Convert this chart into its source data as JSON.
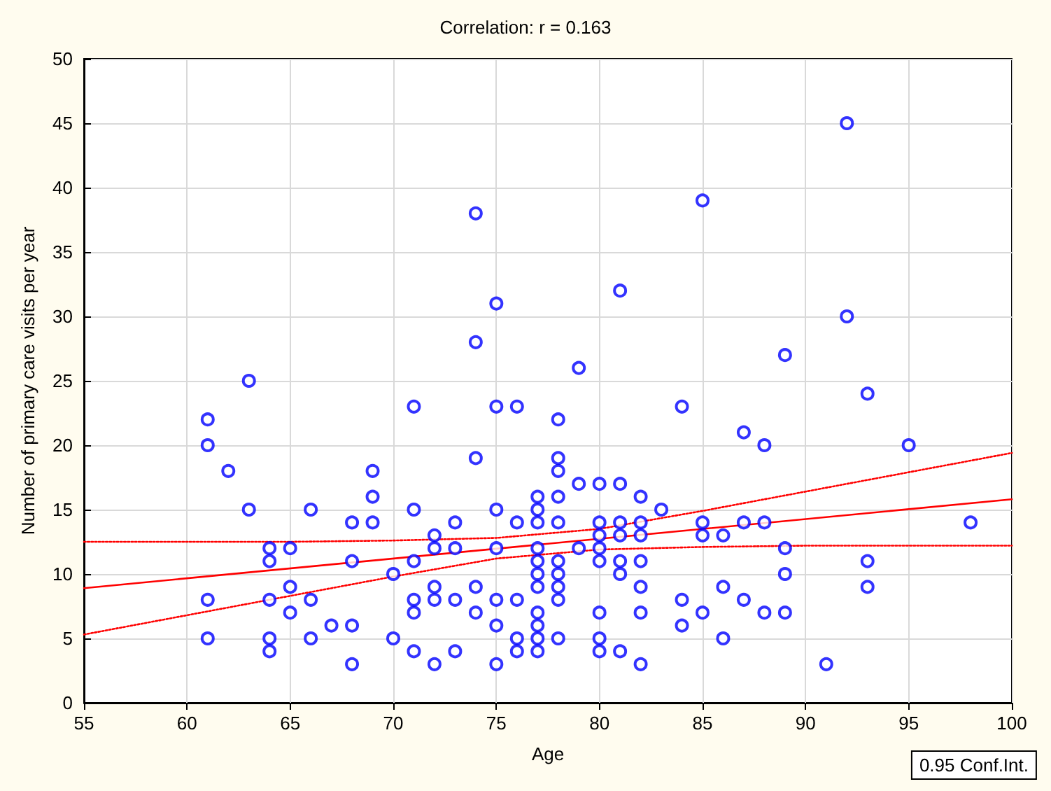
{
  "chart_data": {
    "type": "scatter",
    "title": "Correlation: r = 0.163",
    "xlabel": "Age",
    "ylabel": "Number of primary care visits per year",
    "annotations": [
      "0.95 Conf.Int."
    ],
    "xlim": [
      55,
      100
    ],
    "xticks": [
      55,
      60,
      65,
      70,
      75,
      80,
      85,
      90,
      95,
      100
    ],
    "ylim": [
      0,
      50
    ],
    "yticks": [
      0,
      5,
      10,
      15,
      20,
      25,
      30,
      35,
      40,
      45,
      50
    ],
    "grid": true,
    "series": [
      {
        "marker": "circle",
        "color": "#0000ff",
        "x": [
          61,
          61,
          61,
          61,
          62,
          63,
          63,
          64,
          64,
          64,
          64,
          64,
          65,
          65,
          65,
          66,
          66,
          66,
          67,
          68,
          68,
          68,
          68,
          69,
          69,
          69,
          70,
          70,
          71,
          71,
          71,
          71,
          71,
          71,
          72,
          72,
          72,
          72,
          72,
          73,
          73,
          73,
          73,
          74,
          74,
          74,
          74,
          74,
          75,
          75,
          75,
          75,
          75,
          75,
          75,
          76,
          76,
          76,
          76,
          76,
          77,
          77,
          77,
          77,
          77,
          77,
          77,
          77,
          77,
          77,
          77,
          78,
          78,
          78,
          78,
          78,
          78,
          78,
          78,
          78,
          78,
          79,
          79,
          79,
          80,
          80,
          80,
          80,
          80,
          80,
          80,
          80,
          81,
          81,
          81,
          81,
          81,
          81,
          81,
          82,
          82,
          82,
          82,
          82,
          82,
          82,
          83,
          84,
          84,
          84,
          85,
          85,
          85,
          85,
          86,
          86,
          86,
          87,
          87,
          87,
          88,
          88,
          88,
          89,
          89,
          89,
          89,
          91,
          92,
          92,
          93,
          93,
          93,
          95,
          98
        ],
        "values": [
          22,
          20,
          8,
          5,
          18,
          25,
          15,
          12,
          11,
          8,
          5,
          4,
          12,
          9,
          7,
          15,
          8,
          5,
          6,
          14,
          11,
          6,
          3,
          18,
          16,
          14,
          10,
          5,
          23,
          15,
          11,
          8,
          7,
          4,
          13,
          12,
          9,
          8,
          3,
          14,
          12,
          8,
          4,
          38,
          28,
          19,
          9,
          7,
          31,
          23,
          15,
          12,
          8,
          6,
          3,
          23,
          14,
          8,
          5,
          4,
          16,
          15,
          14,
          12,
          11,
          10,
          9,
          7,
          6,
          5,
          4,
          22,
          19,
          18,
          16,
          14,
          11,
          10,
          9,
          8,
          5,
          26,
          17,
          12,
          17,
          14,
          13,
          12,
          11,
          7,
          5,
          4,
          32,
          17,
          14,
          13,
          11,
          10,
          4,
          16,
          14,
          13,
          11,
          9,
          7,
          3,
          15,
          23,
          8,
          6,
          39,
          14,
          13,
          7,
          13,
          9,
          5,
          21,
          14,
          8,
          20,
          14,
          7,
          27,
          12,
          10,
          7,
          3,
          45,
          30,
          24,
          11,
          9,
          20,
          14
        ]
      },
      {
        "type": "line",
        "color": "#ff0000",
        "line_style": "solid",
        "marker": "none",
        "x": [
          55,
          100
        ],
        "values": [
          8.9,
          15.8
        ]
      },
      {
        "type": "line",
        "color": "#ff0000",
        "line_style": "dotted",
        "marker": "none",
        "x": [
          55,
          60,
          65,
          70,
          75,
          80,
          85,
          90,
          95,
          100
        ],
        "values": [
          12.5,
          12.5,
          12.5,
          12.6,
          12.8,
          13.5,
          14.9,
          16.4,
          17.9,
          19.4
        ]
      },
      {
        "type": "line",
        "color": "#ff0000",
        "line_style": "dotted",
        "marker": "none",
        "x": [
          55,
          60,
          65,
          70,
          75,
          80,
          85,
          90,
          95,
          100
        ],
        "values": [
          5.3,
          6.8,
          8.3,
          9.8,
          11.2,
          11.9,
          12.1,
          12.2,
          12.2,
          12.2
        ]
      }
    ]
  }
}
